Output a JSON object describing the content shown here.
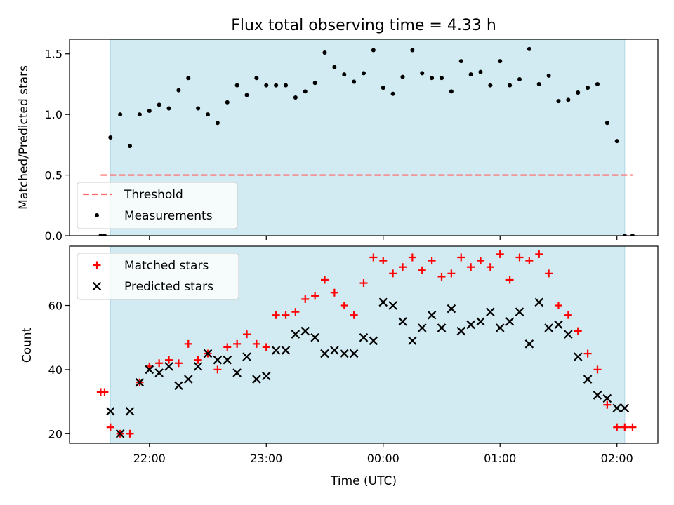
{
  "chart_data": [
    {
      "type": "scatter",
      "title": "Flux total observing time = 4.33 h",
      "ylabel": "Matched/Predicted stars",
      "xlabel": "",
      "xlim": [
        "21:19",
        "02:21"
      ],
      "ylim": [
        0,
        1.62
      ],
      "yticks": [
        "0.0",
        "0.5",
        "1.0",
        "1.5"
      ],
      "shaded_interval": [
        "21:40",
        "02:04"
      ],
      "shade_color": "#add8e6",
      "grid": false,
      "legend_position": "lower left",
      "series": [
        {
          "name": "Threshold",
          "kind": "dashed-line",
          "color": "#ff6b6b",
          "x": [
            "21:35",
            "02:08"
          ],
          "y": [
            0.5,
            0.5
          ]
        },
        {
          "name": "Measurements",
          "kind": "dot",
          "color": "#000000",
          "x": [
            "21:35",
            "21:37",
            "21:40",
            "21:45",
            "21:50",
            "21:55",
            "22:00",
            "22:05",
            "22:10",
            "22:15",
            "22:20",
            "22:25",
            "22:30",
            "22:35",
            "22:40",
            "22:45",
            "22:50",
            "22:55",
            "23:00",
            "23:05",
            "23:10",
            "23:15",
            "23:20",
            "23:25",
            "23:30",
            "23:35",
            "23:40",
            "23:45",
            "23:50",
            "23:55",
            "00:00",
            "00:05",
            "00:10",
            "00:15",
            "00:20",
            "00:25",
            "00:30",
            "00:35",
            "00:40",
            "00:45",
            "00:50",
            "00:55",
            "01:00",
            "01:05",
            "01:10",
            "01:15",
            "01:20",
            "01:25",
            "01:30",
            "01:35",
            "01:40",
            "01:45",
            "01:50",
            "01:55",
            "02:00",
            "02:04",
            "02:08"
          ],
          "y": [
            0.0,
            0.0,
            0.81,
            1.0,
            0.74,
            1.0,
            1.03,
            1.08,
            1.05,
            1.2,
            1.3,
            1.05,
            1.0,
            0.93,
            1.1,
            1.24,
            1.16,
            1.3,
            1.24,
            1.24,
            1.24,
            1.14,
            1.19,
            1.26,
            1.51,
            1.39,
            1.33,
            1.27,
            1.34,
            1.53,
            1.22,
            1.17,
            1.31,
            1.53,
            1.34,
            1.3,
            1.3,
            1.19,
            1.44,
            1.33,
            1.35,
            1.24,
            1.44,
            1.24,
            1.29,
            1.54,
            1.25,
            1.32,
            1.11,
            1.12,
            1.18,
            1.22,
            1.25,
            0.93,
            0.78,
            0.0,
            0.0
          ]
        }
      ]
    },
    {
      "type": "scatter",
      "title": "",
      "ylabel": "Count",
      "xlabel": "Time (UTC)",
      "xlim": [
        "21:19",
        "02:21"
      ],
      "ylim": [
        17,
        78.5
      ],
      "yticks": [
        "20",
        "40",
        "60"
      ],
      "xticks": [
        "22:00",
        "23:00",
        "00:00",
        "01:00",
        "02:00"
      ],
      "shaded_interval": [
        "21:40",
        "02:04"
      ],
      "shade_color": "#add8e6",
      "grid": false,
      "legend_position": "upper left",
      "series": [
        {
          "name": "Matched stars",
          "kind": "plus",
          "color": "#ff0000",
          "x": [
            "21:35",
            "21:37",
            "21:40",
            "21:45",
            "21:50",
            "21:55",
            "22:00",
            "22:05",
            "22:10",
            "22:15",
            "22:20",
            "22:25",
            "22:30",
            "22:35",
            "22:40",
            "22:45",
            "22:50",
            "22:55",
            "23:00",
            "23:05",
            "23:10",
            "23:15",
            "23:20",
            "23:25",
            "23:30",
            "23:35",
            "23:40",
            "23:45",
            "23:50",
            "23:55",
            "00:00",
            "00:05",
            "00:10",
            "00:15",
            "00:20",
            "00:25",
            "00:30",
            "00:35",
            "00:40",
            "00:45",
            "00:50",
            "00:55",
            "01:00",
            "01:05",
            "01:10",
            "01:15",
            "01:20",
            "01:25",
            "01:30",
            "01:35",
            "01:40",
            "01:45",
            "01:50",
            "01:55",
            "02:00",
            "02:04",
            "02:08"
          ],
          "y": [
            33,
            33,
            22,
            20,
            20,
            36,
            41,
            42,
            43,
            42,
            48,
            43,
            45,
            40,
            47,
            48,
            51,
            48,
            47,
            57,
            57,
            58,
            62,
            63,
            68,
            64,
            60,
            57,
            67,
            75,
            74,
            70,
            72,
            75,
            71,
            74,
            69,
            70,
            75,
            72,
            74,
            72,
            76,
            68,
            75,
            74,
            76,
            70,
            60,
            57,
            52,
            45,
            40,
            29,
            22,
            22,
            22
          ]
        },
        {
          "name": "Predicted stars",
          "kind": "x",
          "color": "#000000",
          "x": [
            "21:40",
            "21:45",
            "21:50",
            "21:55",
            "22:00",
            "22:05",
            "22:10",
            "22:15",
            "22:20",
            "22:25",
            "22:30",
            "22:35",
            "22:40",
            "22:45",
            "22:50",
            "22:55",
            "23:00",
            "23:05",
            "23:10",
            "23:15",
            "23:20",
            "23:25",
            "23:30",
            "23:35",
            "23:40",
            "23:45",
            "23:50",
            "23:55",
            "00:00",
            "00:05",
            "00:10",
            "00:15",
            "00:20",
            "00:25",
            "00:30",
            "00:35",
            "00:40",
            "00:45",
            "00:50",
            "00:55",
            "01:00",
            "01:05",
            "01:10",
            "01:15",
            "01:20",
            "01:25",
            "01:30",
            "01:35",
            "01:40",
            "01:45",
            "01:50",
            "01:55",
            "02:00",
            "02:04"
          ],
          "y": [
            27,
            20,
            27,
            36,
            40,
            39,
            41,
            35,
            37,
            41,
            45,
            43,
            43,
            39,
            44,
            37,
            38,
            46,
            46,
            51,
            52,
            50,
            45,
            46,
            45,
            45,
            50,
            49,
            61,
            60,
            55,
            49,
            53,
            57,
            53,
            59,
            52,
            54,
            55,
            58,
            53,
            55,
            58,
            48,
            61,
            53,
            54,
            51,
            44,
            37,
            32,
            31,
            28,
            28
          ]
        }
      ]
    }
  ]
}
